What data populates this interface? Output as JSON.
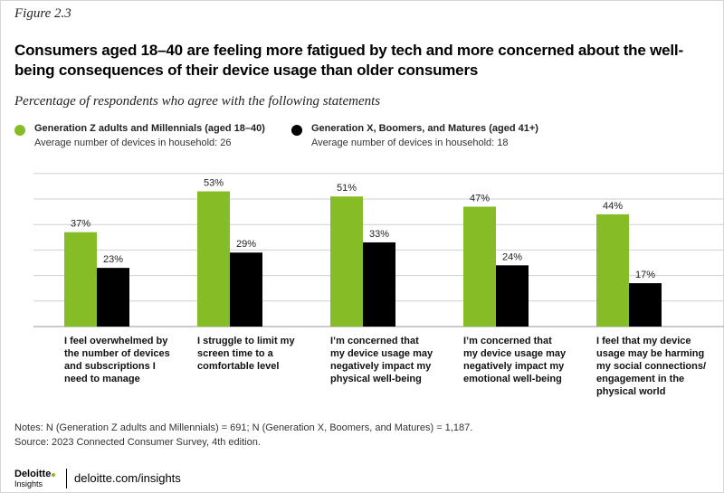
{
  "figure_label": "Figure 2.3",
  "title": "Consumers aged 18–40 are feeling more fatigued by tech and more concerned about the well-being consequences of their device usage than older consumers",
  "subtitle": "Percentage of respondents who agree with the following statements",
  "legend": [
    {
      "name": "Generation Z adults and Millennials (aged 18–40)",
      "sub": "Average number of devices in household: 26",
      "color": "#86bc25"
    },
    {
      "name": "Generation  X, Boomers, and Matures (aged 41+)",
      "sub": "Average number of devices in household: 18",
      "color": "#000000"
    }
  ],
  "chart_data": {
    "type": "bar",
    "categories": [
      "I feel overwhelmed by the number of devices and subscriptions I need to manage",
      "I struggle to limit my screen time to a comfortable level",
      "I’m concerned that my device usage may negatively impact my physical well-being",
      "I’m concerned that my device usage may negatively impact my emotional well-being",
      "I feel that my device usage may be harming my social connections/ engagement in the physical world"
    ],
    "category_lines": [
      [
        "I feel overwhelmed by",
        "the number of devices",
        "and subscriptions I",
        "need to manage"
      ],
      [
        "I struggle to limit my",
        "screen time to a",
        "comfortable level"
      ],
      [
        "I’m concerned that",
        "my device usage may",
        "negatively impact my",
        "physical well-being"
      ],
      [
        "I’m concerned that",
        "my device usage may",
        "negatively impact my",
        "emotional well-being"
      ],
      [
        "I feel that my device",
        "usage may be harming",
        "my social connections/",
        "engagement in the",
        "physical world"
      ]
    ],
    "series": [
      {
        "name": "Generation Z adults and Millennials (aged 18–40)",
        "values": [
          37,
          53,
          51,
          47,
          44
        ],
        "labels": [
          "37%",
          "53%",
          "51%",
          "47%",
          "44%"
        ],
        "color": "#86bc25"
      },
      {
        "name": "Generation  X, Boomers, and Matures (aged 41+)",
        "values": [
          23,
          29,
          33,
          24,
          17
        ],
        "labels": [
          "23%",
          "29%",
          "33%",
          "24%",
          "17%"
        ],
        "color": "#000000"
      }
    ],
    "ylim": [
      0,
      60
    ],
    "grid": true,
    "legend_position": "top-left"
  },
  "notes": [
    "Notes: N (Generation Z adults and Millennials) = 691; N (Generation X, Boomers, and Matures) = 1,187.",
    "Source: 2023 Connected Consumer Survey, 4th edition."
  ],
  "footer": {
    "brand": "Deloitte",
    "brand_sub": "Insights",
    "url": "deloitte.com/insights"
  }
}
